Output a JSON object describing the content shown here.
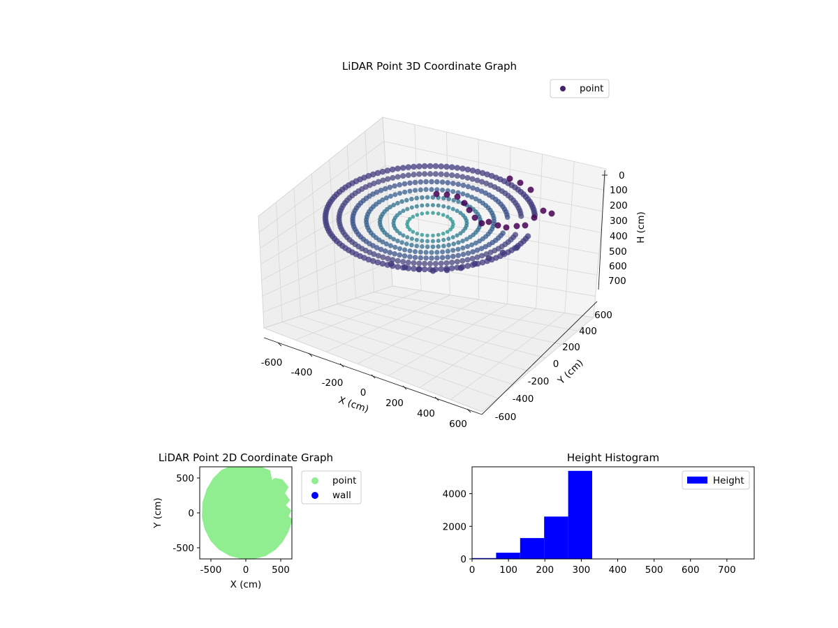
{
  "chart_data": [
    {
      "type": "scatter",
      "projection": "3d",
      "title": "LiDAR Point 3D Coordinate Graph",
      "xlabel": "X (cm)",
      "ylabel": "Y (cm)",
      "zlabel": "H (cm)",
      "x_ticks": [
        -600,
        -400,
        -200,
        0,
        200,
        400,
        600
      ],
      "y_ticks": [
        -600,
        -400,
        -200,
        0,
        200,
        400,
        600
      ],
      "z_ticks": [
        0,
        100,
        200,
        300,
        400,
        500,
        600,
        700
      ],
      "xlim": [
        -650,
        650
      ],
      "ylim": [
        -650,
        650
      ],
      "zlim": [
        0,
        750
      ],
      "z_inverted": true,
      "colormap": "viridis",
      "legend": {
        "location": "top-right",
        "entries": [
          {
            "label": "point",
            "color": "#46216b"
          }
        ]
      },
      "series": [
        {
          "name": "point",
          "description": "dense bowl-shaped ring of LiDAR points, radius about 650 cm, height about 0 to 330 cm"
        }
      ]
    },
    {
      "type": "scatter",
      "title": "LiDAR Point 2D Coordinate Graph",
      "xlabel": "X (cm)",
      "ylabel": "Y (cm)",
      "x_ticks": [
        -500,
        0,
        500
      ],
      "y_ticks": [
        -500,
        0,
        500
      ],
      "xlim": [
        -650,
        650
      ],
      "ylim": [
        -650,
        650
      ],
      "legend": {
        "location": "outside-right",
        "entries": [
          {
            "label": "point",
            "color": "#90ee90"
          },
          {
            "label": "wall",
            "color": "#0000ff"
          }
        ]
      },
      "series": [
        {
          "name": "point",
          "color": "#90ee90",
          "shape": "disc radius about 650 cm with notched gap on upper right"
        },
        {
          "name": "wall",
          "color": "#0000ff",
          "values": []
        }
      ]
    },
    {
      "type": "bar",
      "subtype": "histogram",
      "title": "Height Histogram",
      "xlabel": "",
      "ylabel": "",
      "x_ticks": [
        0,
        100,
        200,
        300,
        400,
        500,
        600,
        700
      ],
      "y_ticks": [
        0,
        2000,
        4000
      ],
      "xlim": [
        0,
        775
      ],
      "ylim": [
        0,
        5650
      ],
      "color": "#0000ff",
      "legend": {
        "location": "top-right",
        "entries": [
          {
            "label": "Height",
            "color": "#0000ff"
          }
        ]
      },
      "bins": [
        {
          "x0": 0,
          "x1": 66,
          "count": 50
        },
        {
          "x0": 66,
          "x1": 132,
          "count": 380
        },
        {
          "x0": 132,
          "x1": 198,
          "count": 1280
        },
        {
          "x0": 198,
          "x1": 264,
          "count": 2600
        },
        {
          "x0": 264,
          "x1": 330,
          "count": 5400
        }
      ]
    }
  ]
}
